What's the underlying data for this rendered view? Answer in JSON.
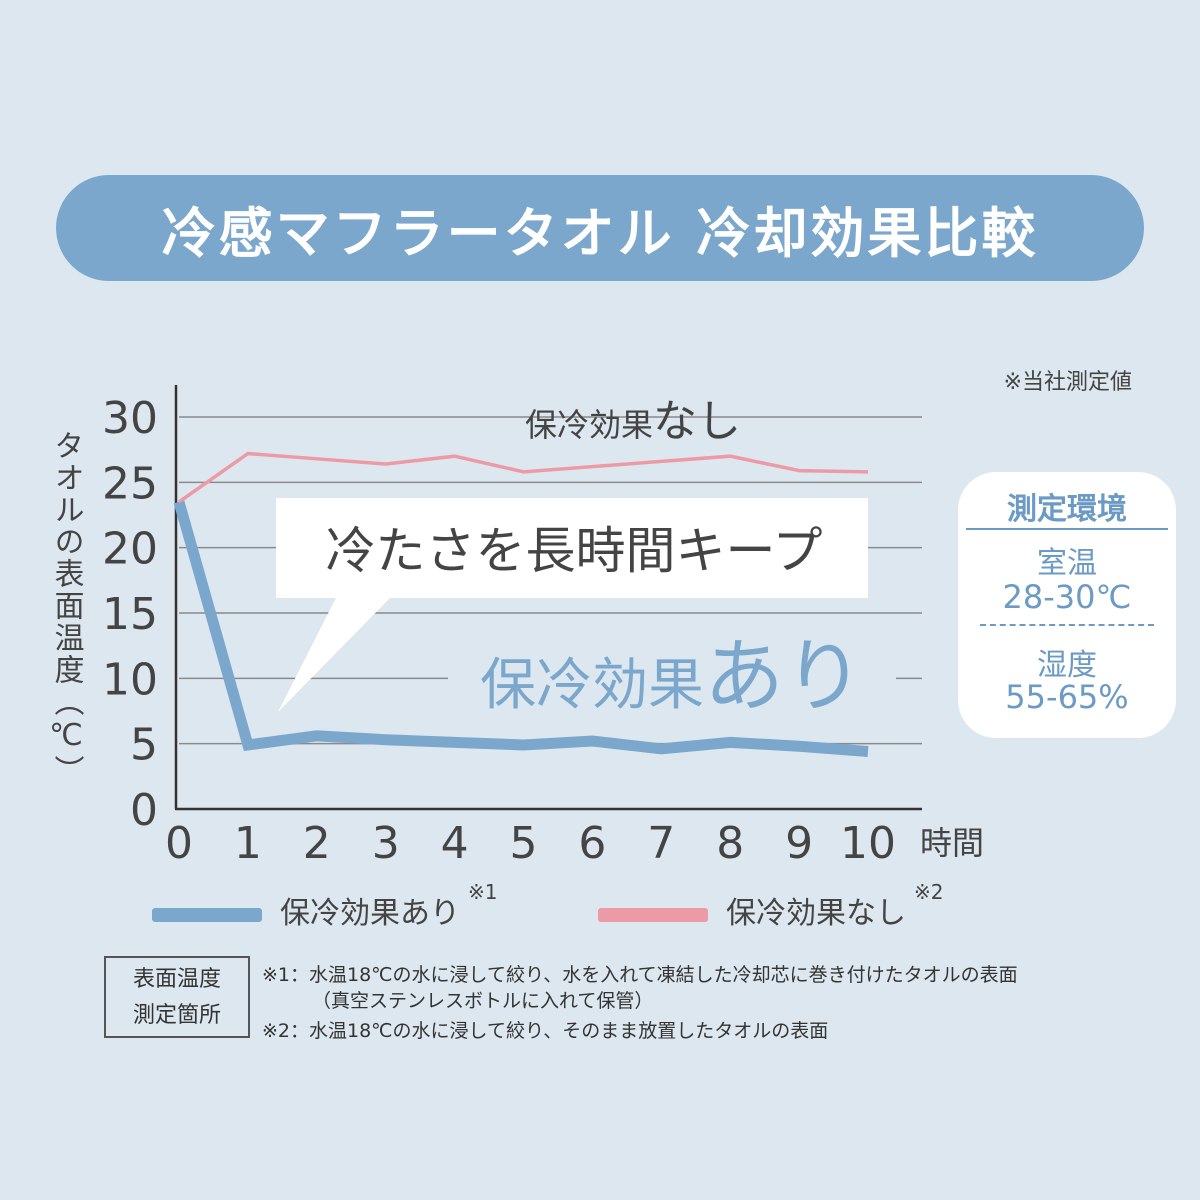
{
  "title": "冷感マフラータオル 冷却効果比較",
  "note_top": "※当社測定値",
  "chart_data": {
    "type": "line",
    "x": [
      0,
      1,
      2,
      3,
      4,
      5,
      6,
      7,
      8,
      9,
      10
    ],
    "xlabel": "時間",
    "ylabel": "タオルの表面温度（℃）",
    "ylim": [
      0,
      30
    ],
    "xlim": [
      0,
      10
    ],
    "y_ticks": [
      "0",
      "5",
      "10",
      "15",
      "20",
      "25",
      "30"
    ],
    "x_ticks": [
      "0",
      "1",
      "2",
      "3",
      "4",
      "5",
      "6",
      "7",
      "8",
      "9",
      "10"
    ],
    "grid": true,
    "series": [
      {
        "name": "保冷効果あり",
        "values": [
          23.5,
          4.9,
          5.6,
          5.3,
          5.1,
          4.9,
          5.2,
          4.6,
          5.1,
          4.8,
          4.4
        ],
        "color": "#7ca7cc"
      },
      {
        "name": "保冷効果なし",
        "values": [
          23.5,
          27.2,
          26.8,
          26.4,
          27.0,
          25.8,
          26.2,
          26.6,
          27.0,
          25.9,
          25.8
        ],
        "color": "#ec9ba6"
      }
    ],
    "annotations": {
      "upper_label_a": "保冷効果",
      "upper_label_b": "なし",
      "callout": "冷たさを長時間キープ",
      "lower_label_a": "保冷効果",
      "lower_label_b": "あり"
    }
  },
  "environment": {
    "title": "測定環境",
    "room_label": "室温",
    "room_value": "28-30℃",
    "humidity_label": "湿度",
    "humidity_value": "55-65%"
  },
  "legend": [
    {
      "label": "保冷効果あり",
      "sup": "※1",
      "color": "#7ca7cc"
    },
    {
      "label": "保冷効果なし",
      "sup": "※2",
      "color": "#ec9ba6"
    }
  ],
  "footnotes": {
    "box_line1": "表面温度",
    "box_line2": "測定箇所",
    "note1_line1": "※1：水温18℃の水に浸して絞り、水を入れて凍結した冷却芯に巻き付けたタオルの表面",
    "note1_line2": "（真空ステンレスボトルに入れて保管）",
    "note2": "※2：水温18℃の水に浸して絞り、そのまま放置したタオルの表面"
  }
}
